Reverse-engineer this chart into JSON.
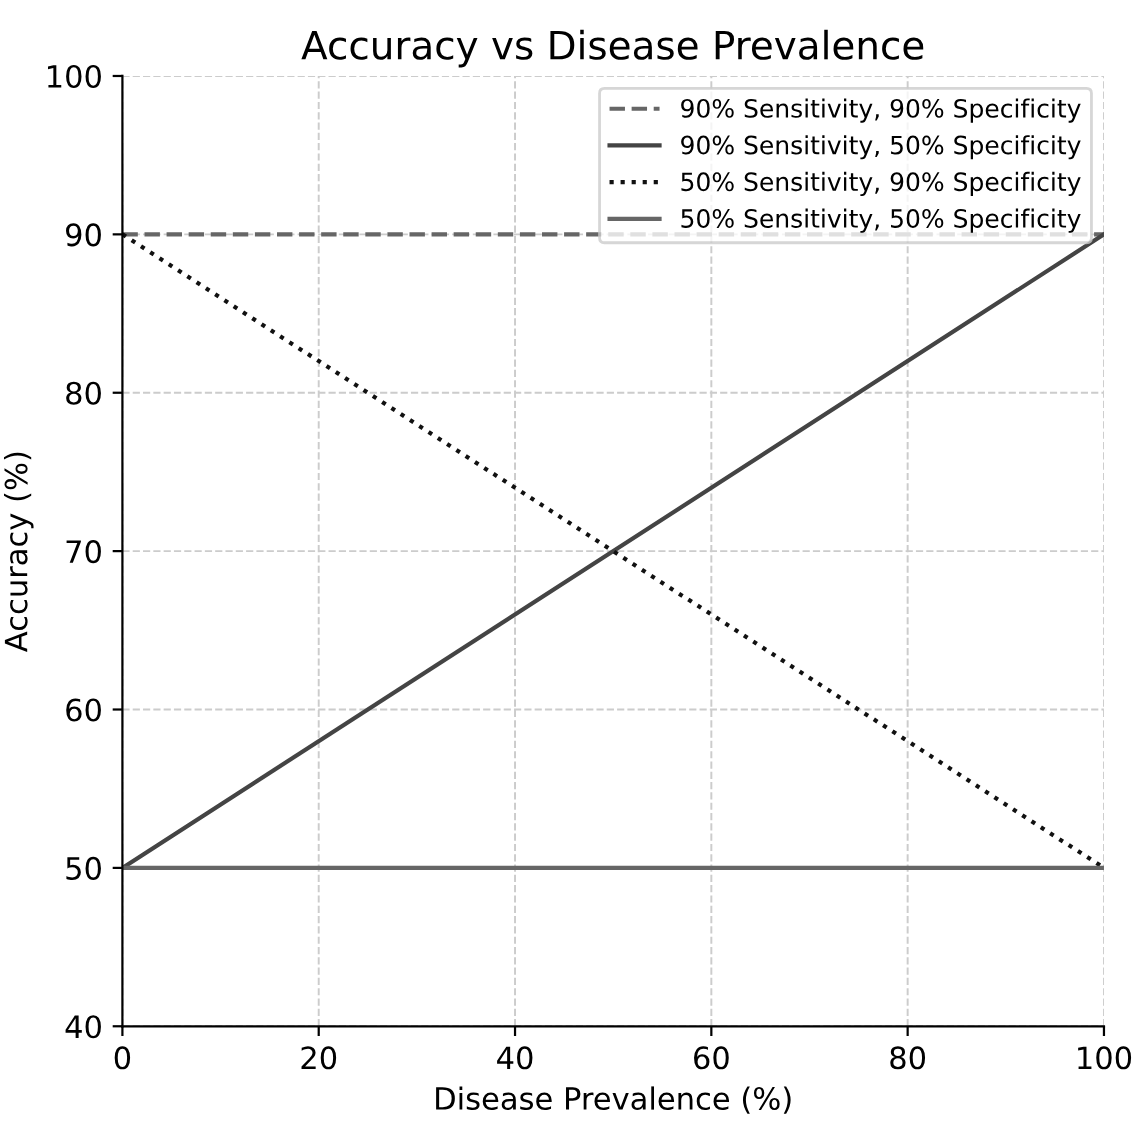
{
  "chart_data": {
    "type": "line",
    "title": "Accuracy vs Disease Prevalence",
    "xlabel": "Disease Prevalence (%)",
    "ylabel": "Accuracy (%)",
    "x": [
      0,
      100
    ],
    "series": [
      {
        "name": "90% Sensitivity, 90% Specificity",
        "color": "#666666",
        "line_style": "dashed",
        "values": [
          90,
          90
        ]
      },
      {
        "name": "90% Sensitivity, 50% Specificity",
        "color": "#444444",
        "line_style": "solid",
        "values": [
          50,
          90
        ]
      },
      {
        "name": "50% Sensitivity, 90% Specificity",
        "color": "#111111",
        "line_style": "dotted",
        "values": [
          90,
          50
        ]
      },
      {
        "name": "50% Sensitivity, 50% Specificity",
        "color": "#666666",
        "line_style": "solid",
        "values": [
          50,
          50
        ]
      }
    ],
    "xlim": [
      0,
      100
    ],
    "xticks": [
      0,
      20,
      40,
      60,
      80,
      100
    ],
    "ylim": [
      40,
      100
    ],
    "yticks": [
      40,
      50,
      60,
      70,
      80,
      90,
      100
    ],
    "grid": true,
    "legend": "top right",
    "marker": "none"
  }
}
